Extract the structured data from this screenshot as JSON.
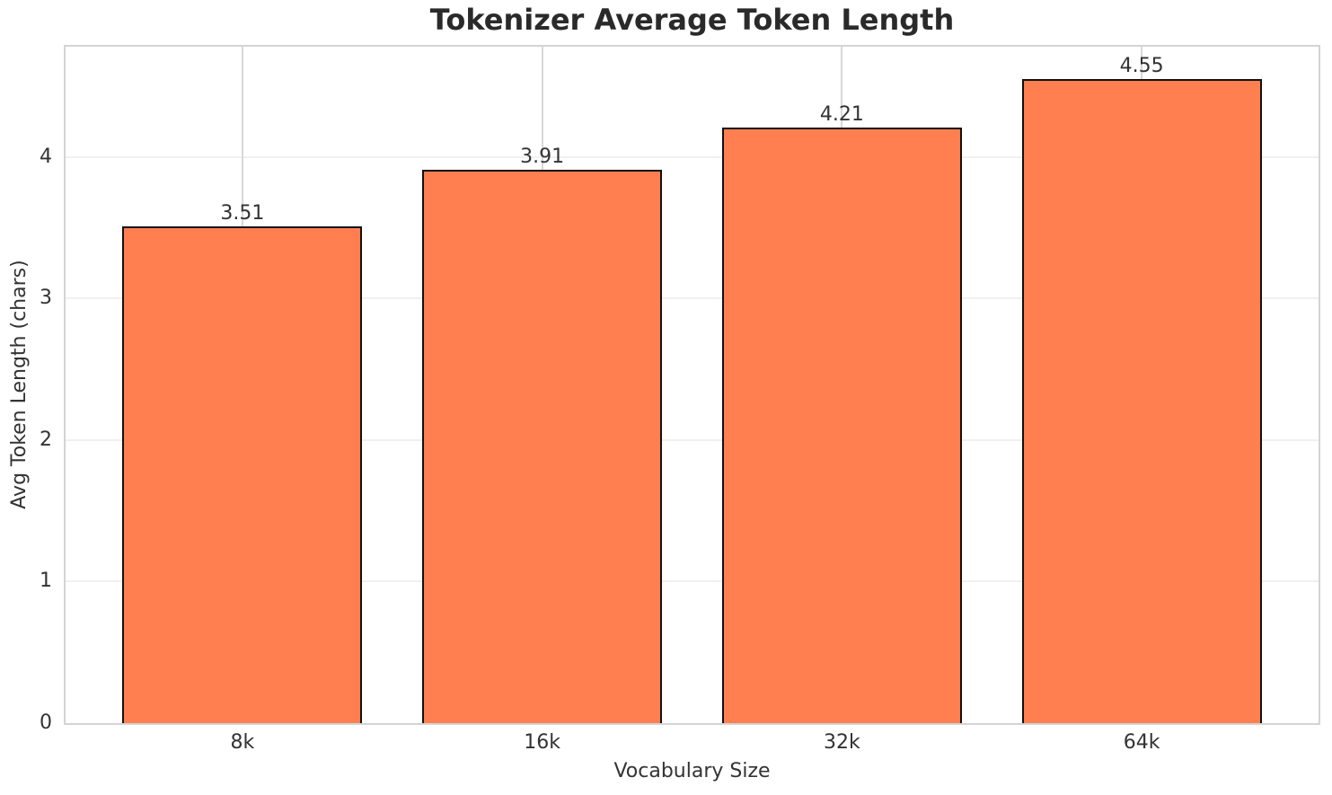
{
  "chart_data": {
    "type": "bar",
    "title": "Tokenizer Average Token Length",
    "xlabel": "Vocabulary Size",
    "ylabel": "Avg Token Length (chars)",
    "categories": [
      "8k",
      "16k",
      "32k",
      "64k"
    ],
    "values": [
      3.51,
      3.91,
      4.21,
      4.55
    ],
    "bar_labels": [
      "3.51",
      "3.91",
      "4.21",
      "4.55"
    ],
    "yticks": [
      0,
      1,
      2,
      3,
      4
    ],
    "ytick_labels": [
      "0",
      "1",
      "2",
      "3",
      "4"
    ],
    "ylim": [
      0,
      4.78
    ],
    "grid": true,
    "legend_position": "none",
    "colors": {
      "bar_fill": "#FF7F50",
      "bar_edge": "#111111",
      "grid_horizontal": "#f0f0f0",
      "grid_vertical": "#d8d8d8",
      "spine": "#d4d4d4",
      "title_text": "#2a2a2a",
      "tick_text": "#333333"
    }
  }
}
